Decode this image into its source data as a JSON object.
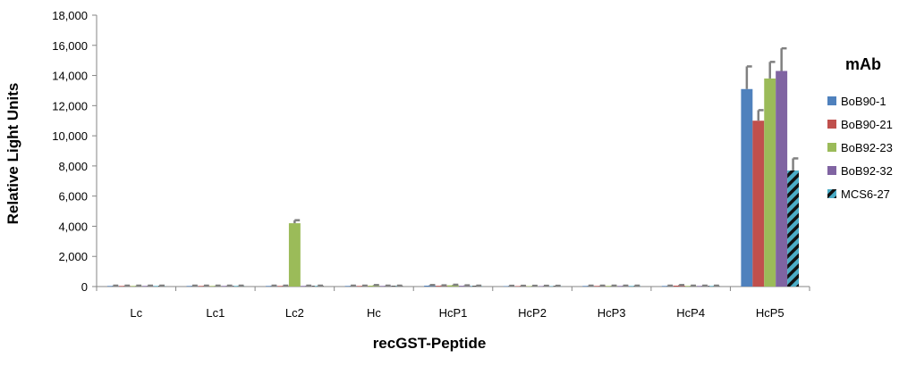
{
  "chart_data": {
    "type": "bar",
    "xlabel": "recGST-Peptide",
    "ylabel": "Relative Light Units",
    "ylim": [
      0,
      18000
    ],
    "yticks": [
      0,
      2000,
      4000,
      6000,
      8000,
      10000,
      12000,
      14000,
      16000,
      18000
    ],
    "ytick_labels": [
      "0",
      "2,000",
      "4,000",
      "6,000",
      "8,000",
      "10,000",
      "12,000",
      "14,000",
      "16,000",
      "18,000"
    ],
    "grid": false,
    "legend": {
      "title": "mAb",
      "placement": "right"
    },
    "categories": [
      "Lc",
      "Lc1",
      "Lc2",
      "Hc",
      "HcP1",
      "HcP2",
      "HcP3",
      "HcP4",
      "HcP5"
    ],
    "series": [
      {
        "name": "BoB90-1",
        "color": "#4F81BD",
        "pattern": "solid",
        "values": [
          40,
          40,
          40,
          40,
          60,
          30,
          40,
          40,
          13100
        ],
        "errors": [
          20,
          20,
          20,
          20,
          40,
          20,
          20,
          20,
          1500
        ]
      },
      {
        "name": "BoB90-21",
        "color": "#C0504D",
        "pattern": "solid",
        "values": [
          40,
          40,
          40,
          40,
          50,
          30,
          40,
          60,
          11000
        ],
        "errors": [
          20,
          20,
          20,
          20,
          30,
          20,
          20,
          40,
          700
        ]
      },
      {
        "name": "BoB92-23",
        "color": "#9BBB59",
        "pattern": "solid",
        "values": [
          40,
          40,
          4200,
          60,
          80,
          30,
          40,
          40,
          13800
        ],
        "errors": [
          20,
          20,
          200,
          40,
          40,
          20,
          20,
          20,
          1100
        ]
      },
      {
        "name": "BoB92-32",
        "color": "#8064A2",
        "pattern": "solid",
        "values": [
          40,
          40,
          40,
          40,
          50,
          30,
          40,
          40,
          14300
        ],
        "errors": [
          20,
          20,
          20,
          20,
          30,
          20,
          20,
          20,
          1500
        ]
      },
      {
        "name": "MCS6-27",
        "color": "#4BACC6",
        "pattern": "hatched",
        "values": [
          40,
          40,
          40,
          40,
          40,
          30,
          40,
          40,
          7700
        ],
        "errors": [
          20,
          20,
          20,
          20,
          20,
          20,
          20,
          20,
          800
        ]
      }
    ]
  }
}
